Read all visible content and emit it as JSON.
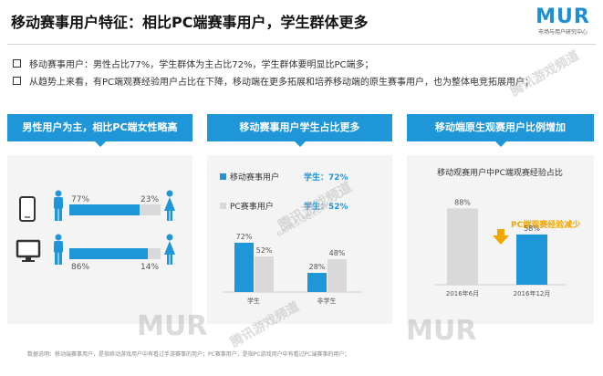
{
  "title": "移动赛事用户特征：相比PC端赛事用户，学生群体更多",
  "logo": {
    "mark": "MUR",
    "sub": "市场与用户研究中心"
  },
  "bullets": [
    "移动赛事用户：男性占比77%，学生群体为主占比72%，学生群体要明显比PC端多；",
    "从趋势上来看，有PC端观赛经验用户占比在下降，移动端在更多拓展和培养移动端的原生赛事用户，也为整体电竞拓展用户；"
  ],
  "panels": [
    {
      "header": "男性用户为主，相比PC端女性略高"
    },
    {
      "header": "移动赛事用户学生占比更多"
    },
    {
      "header": "移动端原生观赛用户比例增加"
    }
  ],
  "watermark": {
    "text": "腾讯游戏频道",
    "sub": "GAMES.QQ.COM",
    "mark": "MUR"
  },
  "footnote": "数据说明：移动端赛事用户，是指移动游戏用户中有看过手游赛事的用户；PC赛事用户，是指PC游戏用户中有看过PC端赛事的用户；",
  "colors": {
    "accent": "#1f96d8",
    "gray": "#d9d9d9",
    "orange": "#f0a800",
    "text": "#333333"
  },
  "chart_data": [
    {
      "type": "bar",
      "orientation": "horizontal",
      "stacked": true,
      "categories": [
        "mobile-icon",
        "pc-monitor-icon"
      ],
      "series": [
        {
          "name": "male",
          "values": [
            77,
            86
          ],
          "labels": [
            "77%",
            "86%"
          ],
          "color": "#1f96d8"
        },
        {
          "name": "female",
          "values": [
            23,
            14
          ],
          "labels": [
            "23%",
            "14%"
          ],
          "color": "#d9d9d9"
        }
      ]
    },
    {
      "type": "bar",
      "categories": [
        "学生",
        "非学生"
      ],
      "series": [
        {
          "name": "移动赛事用户",
          "values": [
            72,
            28
          ],
          "labels": [
            "72%",
            "28%"
          ],
          "color": "#1f96d8"
        },
        {
          "name": "PC赛事用户",
          "values": [
            52,
            48
          ],
          "labels": [
            "52%",
            "48%"
          ],
          "color": "#d9d9d9"
        }
      ],
      "legend": [
        {
          "label": "移动赛事用户",
          "stat": "学生：72%"
        },
        {
          "label": "PC赛事用户",
          "stat": "学生：52%"
        }
      ],
      "ylim": [
        0,
        100
      ]
    },
    {
      "type": "bar",
      "title": "移动观赛用户中PC端观赛经验占比",
      "categories": [
        "2016年6月",
        "2016年12月"
      ],
      "values": [
        88,
        58
      ],
      "labels": [
        "88%",
        "58%"
      ],
      "colors": [
        "#d9d9d9",
        "#1f96d8"
      ],
      "annotation": "PC端观赛经验减少",
      "ylim": [
        0,
        100
      ]
    }
  ]
}
